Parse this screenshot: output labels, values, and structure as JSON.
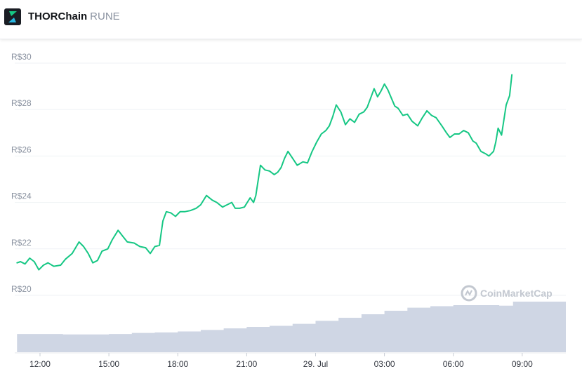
{
  "header": {
    "coin_name": "THORChain",
    "coin_symbol": "RUNE",
    "logo_icon": "thorchain-bolt-icon"
  },
  "colors": {
    "line": "#16c784",
    "volume": "#cfd6e4",
    "grid": "#eff2f5",
    "logo_bg": "#1a1d24"
  },
  "watermark": {
    "text": "CoinMarketCap",
    "icon": "coinmarketcap-logo-icon"
  },
  "chart_data": {
    "type": "line",
    "title": "",
    "xlabel": "",
    "ylabel": "",
    "ylim": [
      19.7,
      30.2
    ],
    "y_ticks": [
      20,
      22,
      24,
      26,
      28,
      30
    ],
    "y_tick_labels": [
      "R$20",
      "R$22",
      "R$24",
      "R$26",
      "R$28",
      "R$30"
    ],
    "x_range_hours": [
      10.9,
      34.9
    ],
    "x_ticks": [
      {
        "hour": 12,
        "label": "12:00"
      },
      {
        "hour": 15,
        "label": "15:00"
      },
      {
        "hour": 18,
        "label": "18:00"
      },
      {
        "hour": 21,
        "label": "21:00"
      },
      {
        "hour": 24,
        "label": "29. Jul"
      },
      {
        "hour": 27,
        "label": "03:00"
      },
      {
        "hour": 30,
        "label": "06:00"
      },
      {
        "hour": 33,
        "label": "09:00"
      }
    ],
    "grid": true,
    "series": [
      {
        "points": [
          [
            11.0,
            21.4
          ],
          [
            11.15,
            21.45
          ],
          [
            11.35,
            21.35
          ],
          [
            11.55,
            21.6
          ],
          [
            11.75,
            21.45
          ],
          [
            11.95,
            21.1
          ],
          [
            12.15,
            21.3
          ],
          [
            12.35,
            21.4
          ],
          [
            12.6,
            21.25
          ],
          [
            12.9,
            21.3
          ],
          [
            13.1,
            21.55
          ],
          [
            13.4,
            21.8
          ],
          [
            13.7,
            22.3
          ],
          [
            13.9,
            22.1
          ],
          [
            14.1,
            21.8
          ],
          [
            14.3,
            21.4
          ],
          [
            14.5,
            21.5
          ],
          [
            14.7,
            21.9
          ],
          [
            14.95,
            22.0
          ],
          [
            15.15,
            22.4
          ],
          [
            15.4,
            22.8
          ],
          [
            15.6,
            22.55
          ],
          [
            15.8,
            22.3
          ],
          [
            16.1,
            22.25
          ],
          [
            16.35,
            22.1
          ],
          [
            16.6,
            22.05
          ],
          [
            16.8,
            21.8
          ],
          [
            17.0,
            22.1
          ],
          [
            17.2,
            22.15
          ],
          [
            17.25,
            22.5
          ],
          [
            17.35,
            23.2
          ],
          [
            17.5,
            23.6
          ],
          [
            17.7,
            23.55
          ],
          [
            17.9,
            23.4
          ],
          [
            18.1,
            23.6
          ],
          [
            18.3,
            23.6
          ],
          [
            18.55,
            23.65
          ],
          [
            18.8,
            23.75
          ],
          [
            19.0,
            23.9
          ],
          [
            19.25,
            24.3
          ],
          [
            19.5,
            24.1
          ],
          [
            19.7,
            24.0
          ],
          [
            19.95,
            23.8
          ],
          [
            20.15,
            23.9
          ],
          [
            20.35,
            24.0
          ],
          [
            20.5,
            23.75
          ],
          [
            20.7,
            23.75
          ],
          [
            20.9,
            23.8
          ],
          [
            21.15,
            24.2
          ],
          [
            21.3,
            24.0
          ],
          [
            21.4,
            24.3
          ],
          [
            21.5,
            24.95
          ],
          [
            21.6,
            25.6
          ],
          [
            21.8,
            25.4
          ],
          [
            22.0,
            25.35
          ],
          [
            22.2,
            25.2
          ],
          [
            22.35,
            25.3
          ],
          [
            22.5,
            25.5
          ],
          [
            22.65,
            25.9
          ],
          [
            22.8,
            26.2
          ],
          [
            23.0,
            25.9
          ],
          [
            23.2,
            25.6
          ],
          [
            23.45,
            25.75
          ],
          [
            23.65,
            25.7
          ],
          [
            23.85,
            26.2
          ],
          [
            24.05,
            26.6
          ],
          [
            24.25,
            26.95
          ],
          [
            24.45,
            27.1
          ],
          [
            24.6,
            27.3
          ],
          [
            24.75,
            27.7
          ],
          [
            24.9,
            28.2
          ],
          [
            25.1,
            27.9
          ],
          [
            25.3,
            27.35
          ],
          [
            25.5,
            27.6
          ],
          [
            25.7,
            27.45
          ],
          [
            25.9,
            27.8
          ],
          [
            26.1,
            27.9
          ],
          [
            26.25,
            28.1
          ],
          [
            26.4,
            28.5
          ],
          [
            26.55,
            28.9
          ],
          [
            26.7,
            28.55
          ],
          [
            26.85,
            28.8
          ],
          [
            27.0,
            29.1
          ],
          [
            27.15,
            28.85
          ],
          [
            27.3,
            28.5
          ],
          [
            27.45,
            28.15
          ],
          [
            27.6,
            28.05
          ],
          [
            27.8,
            27.75
          ],
          [
            28.0,
            27.8
          ],
          [
            28.2,
            27.5
          ],
          [
            28.45,
            27.3
          ],
          [
            28.65,
            27.65
          ],
          [
            28.85,
            27.95
          ],
          [
            29.05,
            27.75
          ],
          [
            29.25,
            27.65
          ],
          [
            29.5,
            27.3
          ],
          [
            29.7,
            27.0
          ],
          [
            29.85,
            26.8
          ],
          [
            30.05,
            26.95
          ],
          [
            30.25,
            26.95
          ],
          [
            30.45,
            27.1
          ],
          [
            30.65,
            27.0
          ],
          [
            30.85,
            26.65
          ],
          [
            31.0,
            26.55
          ],
          [
            31.2,
            26.2
          ],
          [
            31.4,
            26.1
          ],
          [
            31.55,
            26.0
          ],
          [
            31.75,
            26.2
          ],
          [
            31.85,
            26.6
          ],
          [
            31.95,
            27.2
          ],
          [
            32.1,
            26.9
          ],
          [
            32.3,
            28.2
          ],
          [
            32.45,
            28.6
          ],
          [
            32.55,
            29.5
          ]
        ]
      }
    ],
    "volume": [
      [
        11.0,
        0.36
      ],
      [
        12.0,
        0.36
      ],
      [
        13.0,
        0.35
      ],
      [
        14.0,
        0.35
      ],
      [
        15.0,
        0.36
      ],
      [
        16.0,
        0.38
      ],
      [
        17.0,
        0.39
      ],
      [
        18.0,
        0.41
      ],
      [
        19.0,
        0.44
      ],
      [
        20.0,
        0.47
      ],
      [
        21.0,
        0.5
      ],
      [
        22.0,
        0.52
      ],
      [
        23.0,
        0.56
      ],
      [
        24.0,
        0.62
      ],
      [
        25.0,
        0.68
      ],
      [
        26.0,
        0.75
      ],
      [
        27.0,
        0.82
      ],
      [
        28.0,
        0.88
      ],
      [
        29.0,
        0.91
      ],
      [
        30.0,
        0.93
      ],
      [
        31.0,
        0.93
      ],
      [
        32.0,
        0.92
      ],
      [
        32.6,
        1.0
      ]
    ]
  }
}
